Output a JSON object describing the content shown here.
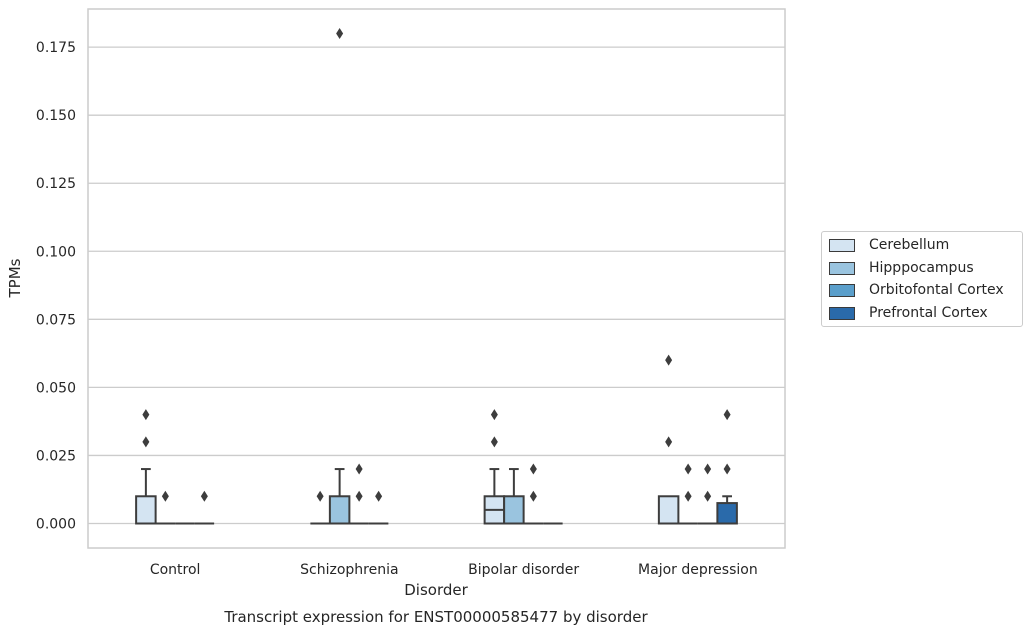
{
  "chart_data": {
    "type": "boxplot",
    "title": "Transcript expression for ENST00000585477 by disorder",
    "xlabel": "Disorder",
    "ylabel": "TPMs",
    "ylim": [
      -0.009,
      0.189
    ],
    "yticks": [
      "0.000",
      "0.025",
      "0.050",
      "0.075",
      "0.100",
      "0.125",
      "0.150",
      "0.175"
    ],
    "grid": true,
    "legend_position": "right",
    "categories": [
      "Control",
      "Schizophrenia",
      "Bipolar disorder",
      "Major depression"
    ],
    "series": [
      {
        "name": "Cerebellum",
        "color": "#d4e4f2",
        "boxes": [
          {
            "q1": 0,
            "median": 0,
            "q3": 0.01,
            "whisker_low": 0,
            "whisker_high": 0.02,
            "outliers": [
              0.03,
              0.04
            ]
          },
          {
            "q1": 0,
            "median": 0,
            "q3": 0,
            "whisker_low": 0,
            "whisker_high": 0,
            "outliers": [
              0.01
            ]
          },
          {
            "q1": 0,
            "median": 0.005,
            "q3": 0.01,
            "whisker_low": 0,
            "whisker_high": 0.02,
            "outliers": [
              0.03,
              0.04
            ]
          },
          {
            "q1": 0,
            "median": 0,
            "q3": 0.01,
            "whisker_low": 0,
            "whisker_high": 0.01,
            "outliers": [
              0.03,
              0.06
            ]
          }
        ]
      },
      {
        "name": "Hipppocampus",
        "color": "#9ac4df",
        "boxes": [
          {
            "q1": 0,
            "median": 0,
            "q3": 0,
            "whisker_low": 0,
            "whisker_high": 0,
            "outliers": [
              0.01
            ]
          },
          {
            "q1": 0,
            "median": 0,
            "q3": 0.01,
            "whisker_low": 0,
            "whisker_high": 0.02,
            "outliers": [
              0.18
            ]
          },
          {
            "q1": 0,
            "median": 0,
            "q3": 0.01,
            "whisker_low": 0,
            "whisker_high": 0.02,
            "outliers": []
          },
          {
            "q1": 0,
            "median": 0,
            "q3": 0,
            "whisker_low": 0,
            "whisker_high": 0,
            "outliers": [
              0.01,
              0.02
            ]
          }
        ]
      },
      {
        "name": "Orbitofontal Cortex",
        "color": "#5b9fcb",
        "boxes": [
          {
            "q1": 0,
            "median": 0,
            "q3": 0,
            "whisker_low": 0,
            "whisker_high": 0,
            "outliers": []
          },
          {
            "q1": 0,
            "median": 0,
            "q3": 0,
            "whisker_low": 0,
            "whisker_high": 0,
            "outliers": [
              0.01,
              0.02
            ]
          },
          {
            "q1": 0,
            "median": 0,
            "q3": 0,
            "whisker_low": 0,
            "whisker_high": 0,
            "outliers": [
              0.01,
              0.02
            ]
          },
          {
            "q1": 0,
            "median": 0,
            "q3": 0,
            "whisker_low": 0,
            "whisker_high": 0,
            "outliers": [
              0.01,
              0.02
            ]
          }
        ]
      },
      {
        "name": "Prefrontal Cortex",
        "color": "#2a6aaa",
        "boxes": [
          {
            "q1": 0,
            "median": 0,
            "q3": 0,
            "whisker_low": 0,
            "whisker_high": 0,
            "outliers": [
              0.01
            ]
          },
          {
            "q1": 0,
            "median": 0,
            "q3": 0,
            "whisker_low": 0,
            "whisker_high": 0,
            "outliers": [
              0.01
            ]
          },
          {
            "q1": 0,
            "median": 0,
            "q3": 0,
            "whisker_low": 0,
            "whisker_high": 0,
            "outliers": []
          },
          {
            "q1": 0,
            "median": 0,
            "q3": 0.0075,
            "whisker_low": 0,
            "whisker_high": 0.01,
            "outliers": [
              0.02,
              0.04
            ]
          }
        ]
      }
    ]
  }
}
